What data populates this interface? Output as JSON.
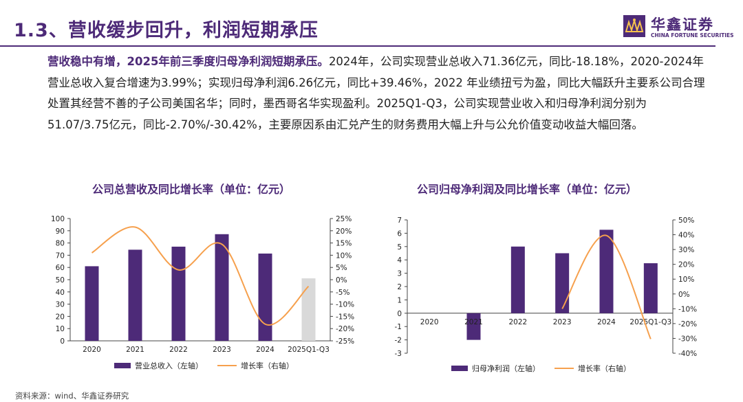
{
  "page": {
    "title": "1.3、营收缓步回升，利润短期承压",
    "logo_cn": "华鑫证券",
    "logo_en": "CHINA FORTUNE SECURITIES",
    "para_lead": "营收稳中有增，2025年前三季度归母净利润短期承压。",
    "para_body": "2024年，公司实现营业总收入71.36亿元，同比-18.18%，2020-2024年营业总收入复合增速为3.99%；实现归母净利润6.26亿元，同比+39.46%，2022 年业绩扭亏为盈，同比大幅跃升主要系公司合理处置其经营不善的子公司美国名华；同时，墨西哥名华实现盈利。2025Q1-Q3，公司实现营业收入和归母净利润分别为51.07/3.75亿元，同比-2.70%/-30.42%，主要原因系由汇兑产生的财务费用大幅上升与公允价值变动收益大幅回落。",
    "source": "资料来源：wind、华鑫证券研究"
  },
  "colors": {
    "brand": "#4d2a78",
    "bar": "#4d2a78",
    "bar_partial": "#d9d9d9",
    "line": "#f6a04d"
  },
  "chart_data": [
    {
      "type": "bar",
      "title": "公司总营收及同比增长率（单位：亿元）",
      "categories": [
        "2020",
        "2021",
        "2022",
        "2023",
        "2024",
        "2025Q1-Q3"
      ],
      "series": [
        {
          "name": "营业总收入（左轴）",
          "axis": "left",
          "values": [
            61,
            74.5,
            77,
            87.2,
            71.36,
            51.07
          ],
          "highlight_last": true
        },
        {
          "name": "增长率（右轴）",
          "axis": "right",
          "type": "line",
          "values": [
            11,
            21.5,
            4,
            14.5,
            -18.18,
            -2.7
          ]
        }
      ],
      "ylim_left": [
        0,
        100
      ],
      "ystep_left": 10,
      "ylim_right": [
        -25,
        25
      ],
      "ystep_right": 5,
      "yticks_left": [
        "0",
        "10",
        "20",
        "30",
        "40",
        "50",
        "60",
        "70",
        "80",
        "90",
        "100"
      ],
      "yticks_right": [
        "-25%",
        "-20%",
        "-15%",
        "-10%",
        "-5%",
        "0%",
        "5%",
        "10%",
        "15%",
        "20%",
        "25%"
      ]
    },
    {
      "type": "bar",
      "title": "公司归母净利润及同比增长率（单位：亿元）",
      "categories": [
        "2020",
        "2021",
        "2022",
        "2023",
        "2024",
        "2025Q1-Q3"
      ],
      "series": [
        {
          "name": "归母净利润（左轴）",
          "axis": "left",
          "values": [
            0,
            -2,
            5,
            4.5,
            6.26,
            3.75
          ]
        },
        {
          "name": "增长率（右轴）",
          "axis": "right",
          "type": "line",
          "values": [
            null,
            null,
            null,
            -10,
            39.46,
            -30.42
          ]
        }
      ],
      "ylim_left": [
        -3,
        7
      ],
      "ystep_left": 1,
      "ylim_right": [
        -40,
        50
      ],
      "ystep_right": 10,
      "yticks_left": [
        "-3",
        "-2",
        "-1",
        "0",
        "1",
        "2",
        "3",
        "4",
        "5",
        "6",
        "7"
      ],
      "yticks_right": [
        "-40%",
        "-30%",
        "-20%",
        "-10%",
        "0%",
        "10%",
        "20%",
        "30%",
        "40%",
        "50%"
      ]
    }
  ]
}
